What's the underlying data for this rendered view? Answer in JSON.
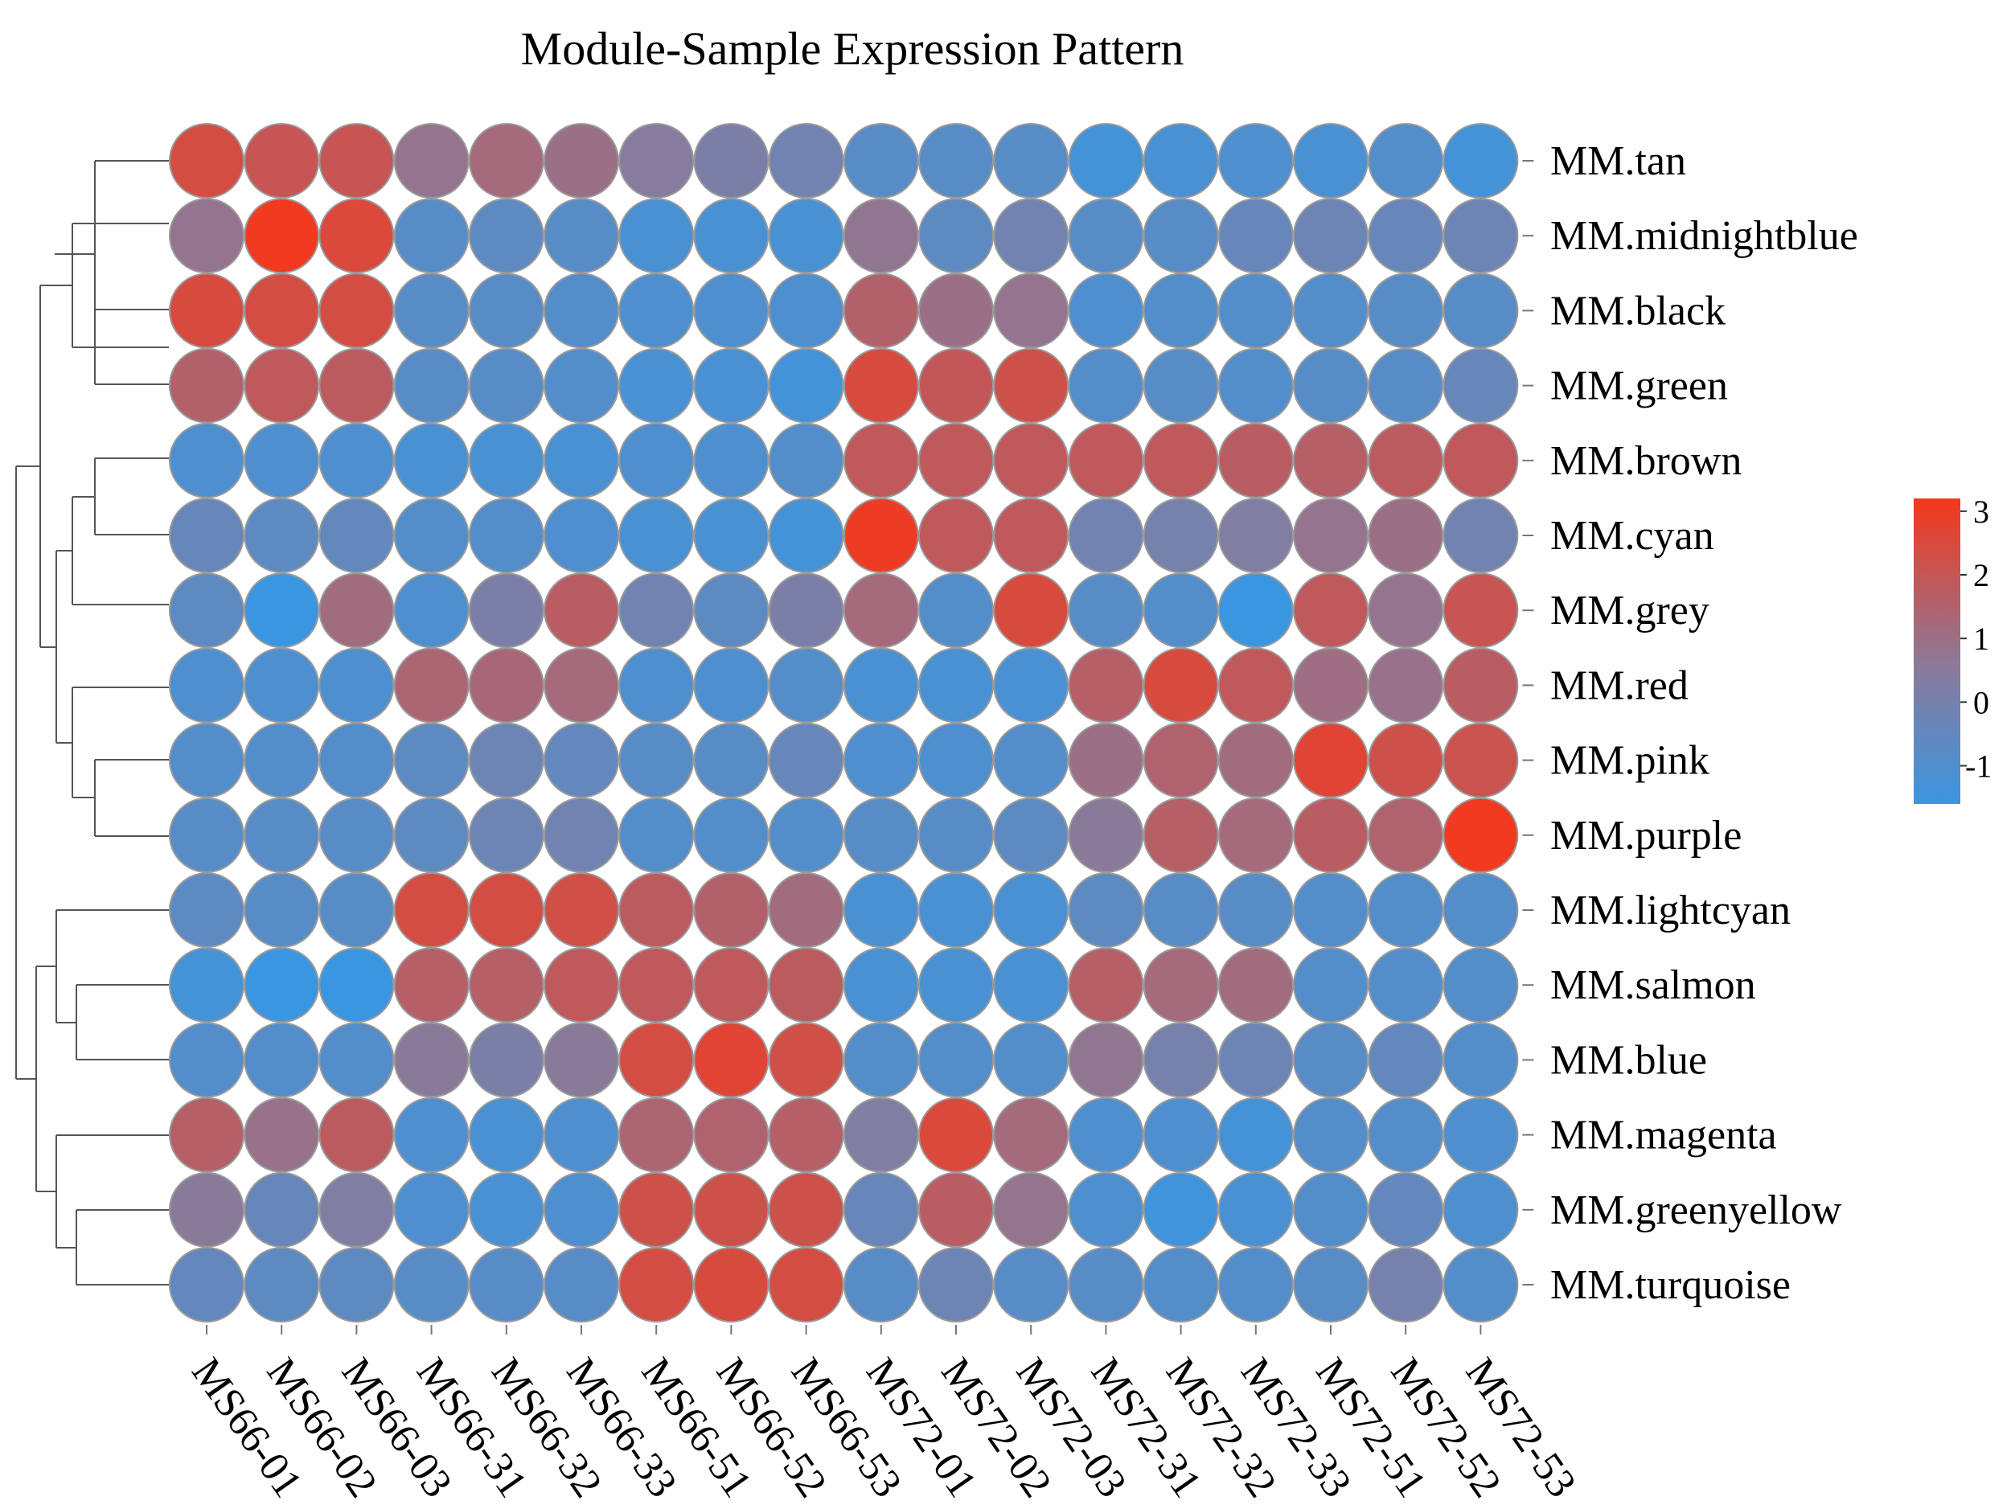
{
  "chart_data": {
    "type": "heatmap",
    "style": "bubble",
    "title": "Module-Sample Expression Pattern",
    "columns": [
      "MS66-01",
      "MS66-02",
      "MS66-03",
      "MS66-31",
      "MS66-32",
      "MS66-33",
      "MS66-51",
      "MS66-52",
      "MS66-53",
      "MS72-01",
      "MS72-02",
      "MS72-03",
      "MS72-31",
      "MS72-32",
      "MS72-33",
      "MS72-51",
      "MS72-52",
      "MS72-53"
    ],
    "rows": [
      "MM.tan",
      "MM.midnightblue",
      "MM.black",
      "MM.green",
      "MM.brown",
      "MM.cyan",
      "MM.grey",
      "MM.red",
      "MM.pink",
      "MM.purple",
      "MM.lightcyan",
      "MM.salmon",
      "MM.blue",
      "MM.magenta",
      "MM.greenyellow",
      "MM.turquoise"
    ],
    "values": [
      [
        2.2,
        1.8,
        1.8,
        0.3,
        0.8,
        0.5,
        -0.1,
        -0.3,
        -0.5,
        -1.0,
        -1.0,
        -1.0,
        -1.4,
        -1.3,
        -1.2,
        -1.3,
        -1.1,
        -1.4
      ],
      [
        0.3,
        3.1,
        2.4,
        -1.0,
        -0.9,
        -1.0,
        -1.3,
        -1.3,
        -1.3,
        0.2,
        -0.9,
        -0.5,
        -1.0,
        -1.0,
        -0.7,
        -0.6,
        -0.7,
        -0.6
      ],
      [
        2.3,
        2.2,
        2.2,
        -1.0,
        -1.0,
        -1.1,
        -1.2,
        -1.2,
        -1.2,
        1.2,
        0.5,
        0.3,
        -1.2,
        -1.1,
        -1.1,
        -1.1,
        -1.0,
        -1.0
      ],
      [
        1.2,
        1.6,
        1.5,
        -1.0,
        -1.0,
        -1.1,
        -1.3,
        -1.3,
        -1.4,
        2.3,
        1.7,
        2.0,
        -1.1,
        -1.0,
        -1.1,
        -1.0,
        -1.0,
        -0.7
      ],
      [
        -1.2,
        -1.2,
        -1.2,
        -1.3,
        -1.3,
        -1.3,
        -1.2,
        -1.2,
        -1.1,
        1.6,
        1.6,
        1.6,
        1.6,
        1.6,
        1.4,
        1.3,
        1.5,
        1.6
      ],
      [
        -0.7,
        -0.9,
        -0.8,
        -1.1,
        -1.1,
        -1.2,
        -1.3,
        -1.3,
        -1.4,
        3.0,
        1.6,
        1.6,
        -0.5,
        -0.4,
        -0.2,
        0.3,
        0.5,
        -0.5
      ],
      [
        -0.9,
        -2.0,
        0.7,
        -1.2,
        -0.3,
        1.4,
        -0.5,
        -0.9,
        -0.3,
        0.8,
        -1.1,
        2.3,
        -1.0,
        -1.1,
        -2.0,
        1.6,
        0.3,
        1.8
      ],
      [
        -1.2,
        -1.2,
        -1.2,
        1.0,
        0.9,
        0.8,
        -1.2,
        -1.2,
        -1.1,
        -1.3,
        -1.3,
        -1.3,
        1.3,
        2.3,
        1.6,
        0.6,
        0.4,
        1.4
      ],
      [
        -1.1,
        -1.1,
        -1.1,
        -0.9,
        -0.6,
        -0.8,
        -1.0,
        -1.0,
        -0.7,
        -1.2,
        -1.2,
        -1.1,
        0.5,
        1.1,
        0.7,
        2.6,
        2.0,
        1.9
      ],
      [
        -1.0,
        -1.0,
        -1.0,
        -0.9,
        -0.6,
        -0.5,
        -1.1,
        -1.1,
        -1.1,
        -1.0,
        -1.0,
        -0.9,
        0.0,
        1.3,
        0.8,
        1.4,
        1.1,
        3.1
      ],
      [
        -0.9,
        -1.0,
        -1.0,
        2.2,
        2.2,
        2.1,
        1.5,
        1.2,
        0.7,
        -1.3,
        -1.3,
        -1.3,
        -0.9,
        -1.0,
        -1.0,
        -1.1,
        -1.1,
        -1.1
      ],
      [
        -1.4,
        -1.6,
        -1.6,
        1.3,
        1.3,
        1.6,
        1.6,
        1.6,
        1.5,
        -1.3,
        -1.3,
        -1.3,
        1.3,
        0.8,
        0.7,
        -1.1,
        -1.1,
        -1.1
      ],
      [
        -1.1,
        -1.1,
        -1.1,
        0.0,
        -0.3,
        0.0,
        2.2,
        2.6,
        2.1,
        -1.1,
        -1.1,
        -1.1,
        0.2,
        -0.4,
        -0.6,
        -1.0,
        -0.8,
        -1.1
      ],
      [
        1.3,
        0.4,
        1.5,
        -1.2,
        -1.3,
        -1.2,
        1.0,
        1.1,
        1.3,
        -0.2,
        2.4,
        0.8,
        -1.2,
        -1.2,
        -1.4,
        -1.1,
        -1.1,
        -1.2
      ],
      [
        0.0,
        -0.7,
        -0.2,
        -1.2,
        -1.3,
        -1.2,
        2.0,
        2.0,
        2.0,
        -0.7,
        1.4,
        0.3,
        -1.2,
        -1.5,
        -1.3,
        -1.1,
        -0.8,
        -1.2
      ],
      [
        -0.8,
        -0.9,
        -0.9,
        -1.0,
        -1.0,
        -1.0,
        2.2,
        2.3,
        2.2,
        -1.0,
        -0.6,
        -1.0,
        -1.0,
        -1.1,
        -1.1,
        -1.0,
        -0.4,
        -1.1
      ]
    ],
    "color_scale": {
      "min": -1.6,
      "max": 3.2,
      "low": "#3a96e0",
      "mid": "#8a7a9a",
      "high": "#f5381c"
    },
    "legend": {
      "ticks": [
        3,
        2,
        1,
        0,
        -1
      ],
      "labels": [
        "3",
        "2",
        "1",
        "0",
        "-1"
      ],
      "placement": "right"
    },
    "row_dendrogram": true,
    "xlabel": "",
    "ylabel": ""
  }
}
